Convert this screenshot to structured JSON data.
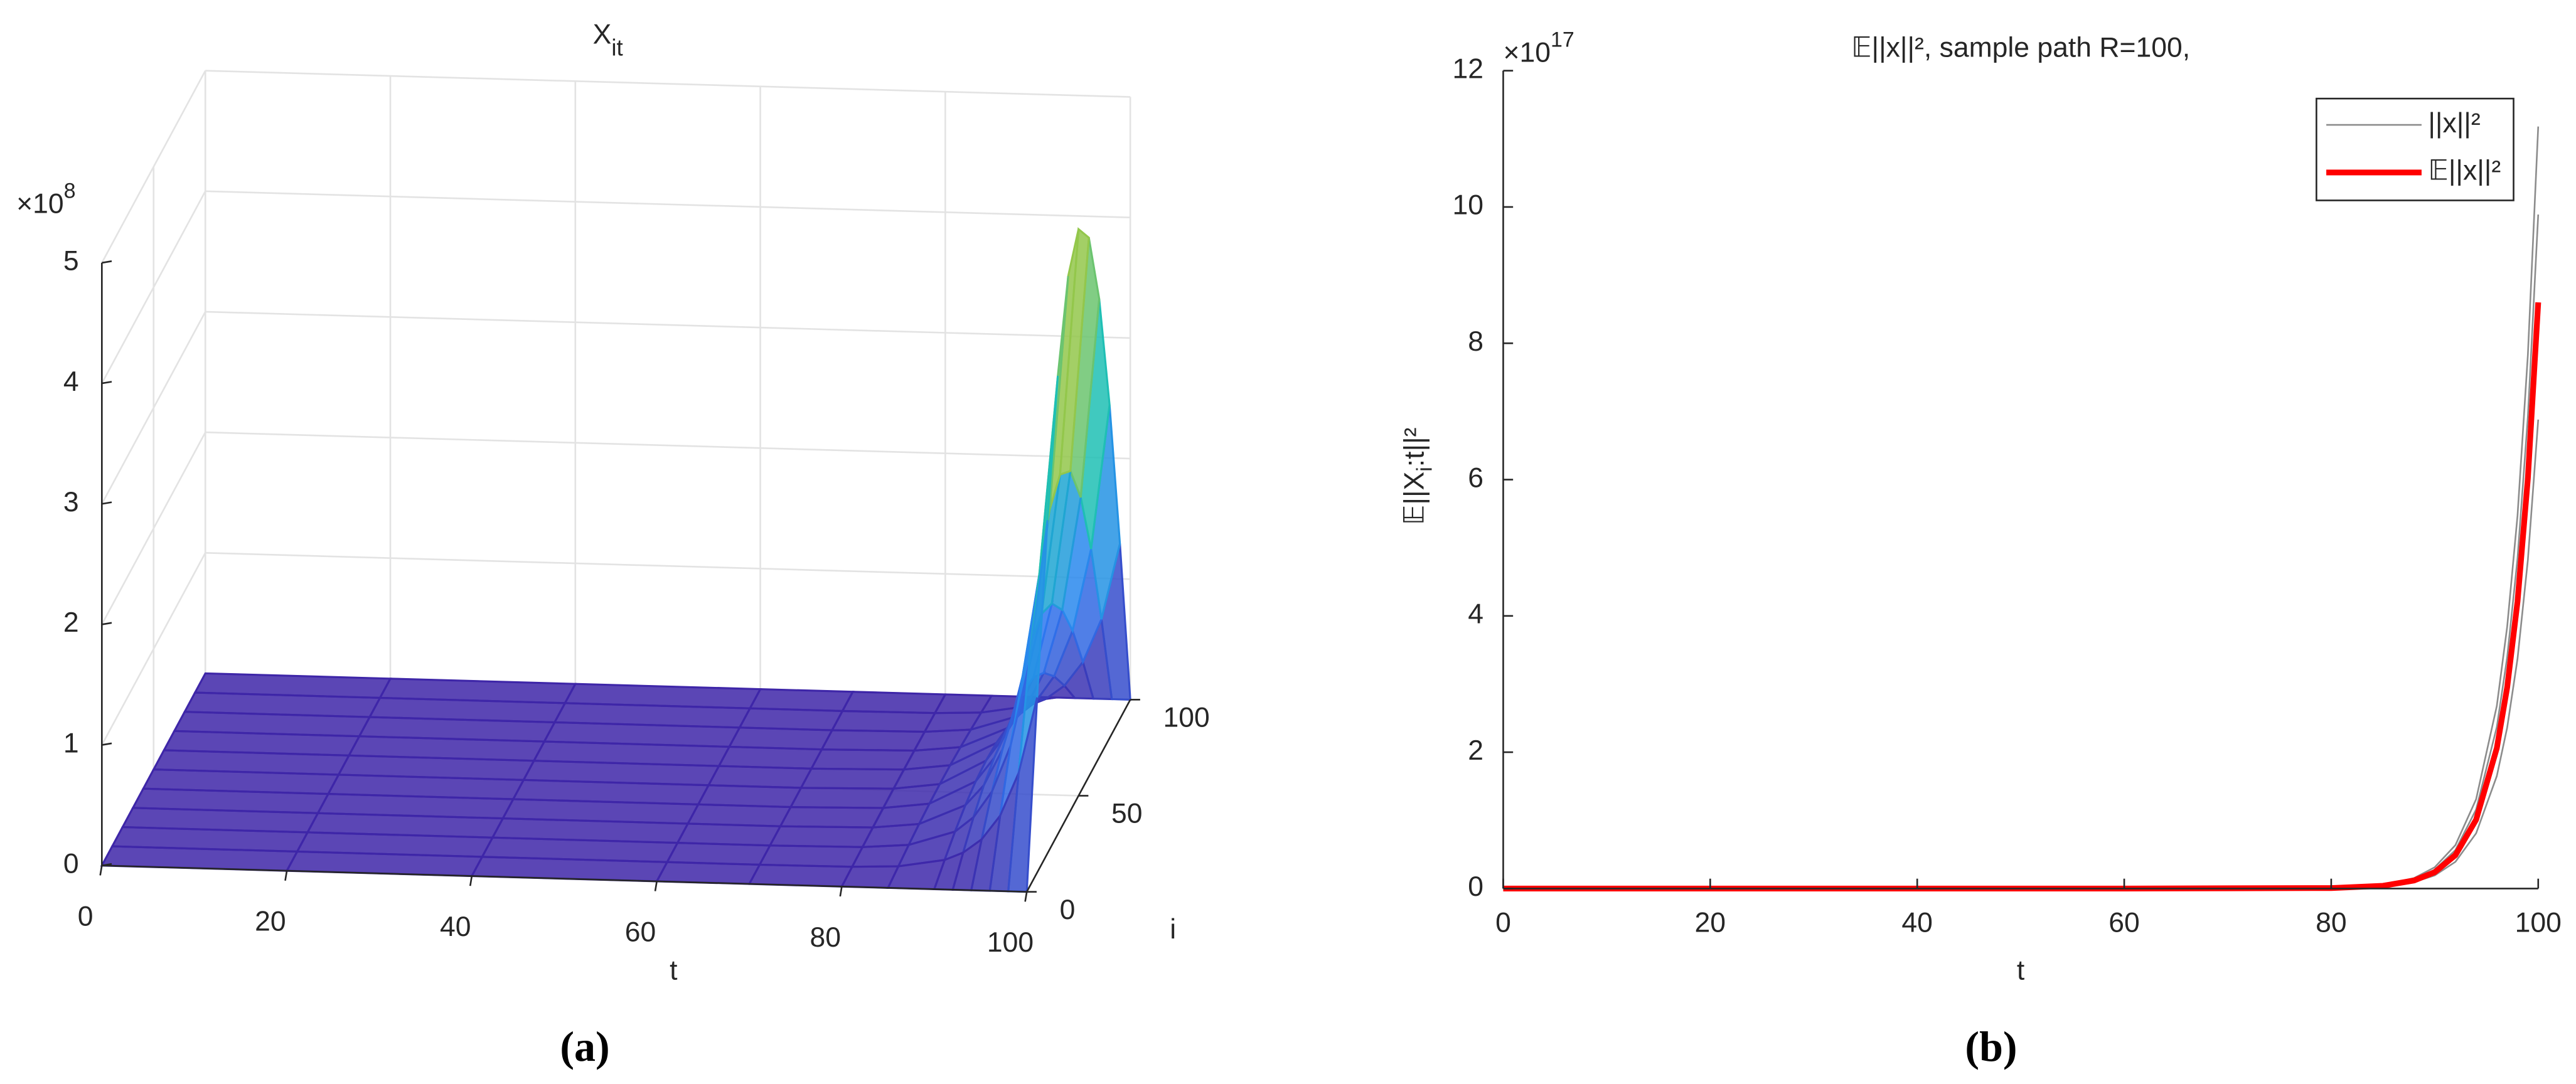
{
  "chart_data": [
    {
      "type": "surface",
      "title": {
        "text": "X",
        "sub": "it"
      },
      "xlabel": "t",
      "ylabel": "i",
      "zexponent": {
        "base": "×10",
        "power": "8"
      },
      "xlim": [
        0,
        100
      ],
      "xticks": [
        0,
        20,
        40,
        60,
        80,
        100
      ],
      "ylim": [
        0,
        100
      ],
      "yticks": [
        0,
        50,
        100
      ],
      "zlim": [
        0,
        500000000
      ],
      "zticks": [
        0,
        {
          "value": 100000000,
          "label": "1"
        },
        {
          "value": 200000000,
          "label": "2"
        },
        {
          "value": 300000000,
          "label": "3"
        },
        {
          "value": 400000000,
          "label": "4"
        },
        {
          "value": 500000000,
          "label": "5"
        }
      ],
      "grid": true,
      "colormap": [
        "#3e26a8",
        "#2c7ef7",
        "#17bebb",
        "#a5c83a",
        "#f9fb15"
      ],
      "t": [
        0,
        20,
        40,
        60,
        70,
        80,
        85,
        90,
        92,
        94,
        96,
        98,
        100
      ],
      "i": [
        0,
        10,
        20,
        30,
        40,
        50,
        60,
        70,
        80,
        90,
        100
      ],
      "z": [
        [
          0,
          0,
          0,
          0,
          0,
          0,
          0,
          0,
          0,
          0,
          0
        ],
        [
          0,
          0,
          0,
          0,
          0,
          0,
          0,
          0,
          0,
          0,
          0
        ],
        [
          0,
          0,
          0,
          0,
          0,
          0,
          0,
          0,
          0,
          0,
          0
        ],
        [
          0,
          0,
          0,
          0,
          0,
          0,
          0,
          0,
          0,
          0,
          0
        ],
        [
          0,
          0,
          0,
          0,
          0,
          0,
          0,
          0,
          0,
          0,
          0
        ],
        [
          0,
          463500,
          882000,
          1213500,
          1426500,
          1500000,
          1426500,
          1213500,
          882000,
          463500,
          0
        ],
        [
          0,
          1977600,
          3763200,
          5177600,
          6086400,
          6400000,
          6086400,
          5177600,
          3763200,
          1977600,
          0
        ],
        [
          0,
          8343000,
          15876000,
          21843000,
          25677000,
          27000000,
          25677000,
          21843000,
          15876000,
          8343000,
          0
        ],
        [
          0,
          14832000,
          28224000,
          38832000,
          45648000,
          48000000,
          45648000,
          38832000,
          28224000,
          14832000,
          0
        ],
        [
          0,
          26265000,
          49980000,
          68765000,
          80835000,
          85000000,
          80835000,
          68765000,
          49980000,
          26265000,
          0
        ],
        [
          0,
          46350000,
          88200000,
          121350000,
          142650000,
          150000000,
          142650000,
          121350000,
          88200000,
          46350000,
          0
        ],
        [
          0,
          82190000,
          156410000,
          215190000,
          252970000,
          266000000,
          252970000,
          215190000,
          156410000,
          82190000,
          0
        ],
        [
          0,
          145230000,
          276360000,
          380230000,
          446970000,
          470000000,
          446970000,
          380230000,
          276360000,
          145230000,
          0
        ]
      ]
    },
    {
      "type": "line",
      "title": "𝔼||x||², sample path R=100,",
      "xlabel": "t",
      "ylabel": {
        "text": "𝔼||X",
        "sub": "i",
        "rest": ":t||²"
      },
      "yexponent": {
        "base": "×10",
        "power": "17"
      },
      "xlim": [
        0,
        100
      ],
      "xticks": [
        0,
        20,
        40,
        60,
        80,
        100
      ],
      "ylim": [
        0,
        1.2e+18
      ],
      "yticks": [
        0,
        {
          "value": 2e+17,
          "label": "2"
        },
        {
          "value": 4e+17,
          "label": "4"
        },
        {
          "value": 6e+17,
          "label": "6"
        },
        {
          "value": 8e+17,
          "label": "8"
        },
        {
          "value": 1e+18,
          "label": "10"
        },
        {
          "value": 1.2e+18,
          "label": "12"
        }
      ],
      "legend": "upper right",
      "x": [
        0,
        20,
        40,
        60,
        80,
        85,
        88,
        90,
        92,
        94,
        96,
        97,
        98,
        99,
        100
      ],
      "series": [
        {
          "name": "||x||²",
          "color": "#8c8c8c",
          "values": [
            [
              0,
              0,
              0,
              0,
              880000000000000.0,
              5200000000000000.0,
              1.53e+16,
              3.12e+16,
              6.37e+16,
              1.31e+17,
              2.68e+17,
              3.84e+17,
              5.47e+17,
              7.83e+17,
              1.118e+18
            ],
            [
              0,
              0,
              0,
              0,
              780000000000000.0,
              4600000000000000.0,
              1.36e+16,
              2.76e+16,
              5.64e+16,
              1.16e+17,
              2.37e+17,
              3.39e+17,
              4.84e+17,
              6.92e+17,
              9.89e+17
            ],
            [
              0,
              0,
              0,
              0,
              650000000000000.0,
              3800000000000000.0,
              1.12e+16,
              2.28e+16,
              4.66e+16,
              9.6e+16,
              1.96e+17,
              2.8e+17,
              4e+17,
              5.72e+17,
              8.17e+17
            ],
            [
              0,
              0,
              0,
              0,
              540000000000000.0,
              3200000000000000.0,
              9400000000000000.0,
              1.92e+16,
              3.92e+16,
              8.1e+16,
              1.65e+17,
              2.36e+17,
              3.37e+17,
              4.82e+17,
              6.88e+17
            ]
          ]
        },
        {
          "name": "𝔼||x||²",
          "color": "#ff0000",
          "values": [
            0,
            0,
            0,
            0,
            680000000000000.0,
            4000000000000000.0,
            1.18e+16,
            2.4e+16,
            4.9e+16,
            1.01e+17,
            2.06e+17,
            2.95e+17,
            4.21e+17,
            6.02e+17,
            8.6e+17
          ]
        }
      ]
    }
  ],
  "captions": [
    "(a)",
    "(b)"
  ]
}
